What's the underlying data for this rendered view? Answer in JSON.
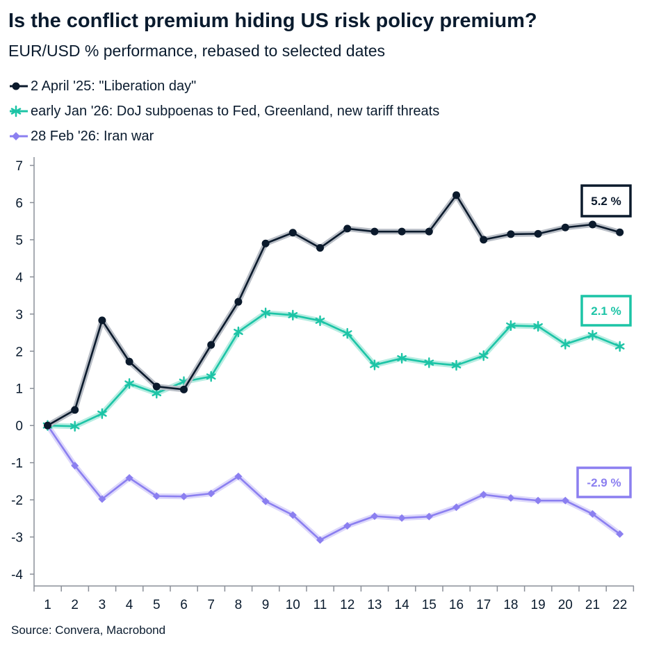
{
  "header": {
    "title": "Is the conflict premium hiding US risk policy premium?",
    "subtitle": "EUR/USD % performance, rebased to selected dates"
  },
  "source": "Source: Convera, Macrobond",
  "chart_data": {
    "type": "line",
    "x": [
      1,
      2,
      3,
      4,
      5,
      6,
      7,
      8,
      9,
      10,
      11,
      12,
      13,
      14,
      15,
      16,
      17,
      18,
      19,
      20,
      21,
      22
    ],
    "ylim": [
      -4,
      7
    ],
    "yticks": [
      -4,
      -3,
      -2,
      -1,
      0,
      1,
      2,
      3,
      4,
      5,
      6,
      7
    ],
    "legend_position": "top-left",
    "grid": false,
    "series": [
      {
        "name": "2 April '25: \"Liberation day\"",
        "color": "#0b1a2c",
        "marker": "circle",
        "values": [
          0.0,
          0.42,
          2.83,
          1.72,
          1.05,
          0.97,
          2.17,
          3.33,
          4.9,
          5.19,
          4.78,
          5.3,
          5.22,
          5.22,
          5.22,
          6.2,
          5.0,
          5.15,
          5.16,
          5.33,
          5.41,
          5.2
        ],
        "end_label": "5.2 %"
      },
      {
        "name": "early Jan '26: DoJ subpoenas to Fed, Greenland, new tariff threats",
        "color": "#1cc4a6",
        "marker": "asterisk",
        "values": [
          0.0,
          -0.02,
          0.32,
          1.13,
          0.87,
          1.18,
          1.32,
          2.52,
          3.03,
          2.97,
          2.82,
          2.48,
          1.63,
          1.81,
          1.69,
          1.62,
          1.88,
          2.69,
          2.67,
          2.19,
          2.43,
          2.13
        ],
        "end_label": "2.1 %"
      },
      {
        "name": "28 Feb '26: Iran war",
        "color": "#8b7ff0",
        "marker": "diamond",
        "values": [
          0.0,
          -1.08,
          -1.98,
          -1.41,
          -1.9,
          -1.91,
          -1.83,
          -1.37,
          -2.04,
          -2.41,
          -3.08,
          -2.7,
          -2.44,
          -2.49,
          -2.45,
          -2.2,
          -1.86,
          -1.95,
          -2.02,
          -2.02,
          -2.38,
          -2.92
        ],
        "end_label": "-2.9 %"
      }
    ]
  }
}
